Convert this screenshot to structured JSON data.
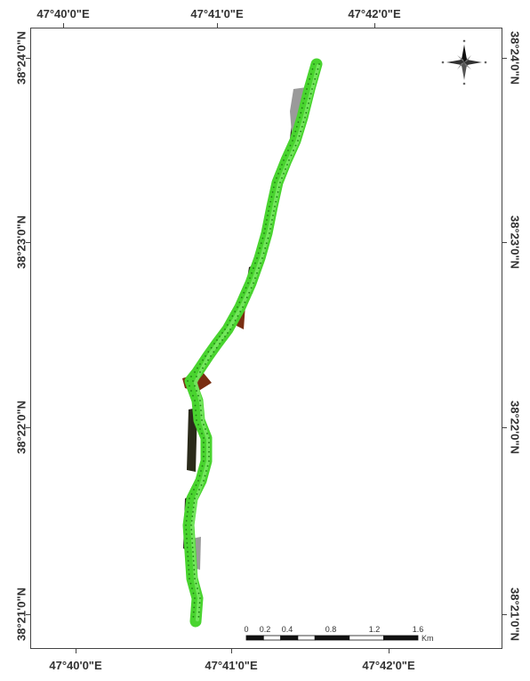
{
  "map": {
    "lon_labels": {
      "l1": "47°40'0\"E",
      "l2": "47°41'0\"E",
      "l3": "47°42'0\"E"
    },
    "lat_labels": {
      "a1": "38°24'0\"N",
      "a2": "38°23'0\"N",
      "a3": "38°22'0\"N",
      "a4": "38°21'0\"N"
    },
    "river_colors": {
      "vegetation": "#49d42f",
      "vegetation_light": "#8ef07a",
      "bank_dark": "#2a2a1a",
      "bank_brown": "#7a2e12",
      "bank_grey": "#9a9a9a",
      "points": "#1f7d14"
    },
    "north_arrow": {
      "icon": "compass-rose-icon"
    },
    "scale_bar": {
      "ticks": [
        "0",
        "0.2",
        "0.4",
        "0.8",
        "1.2",
        "1.6"
      ],
      "unit": "Km"
    }
  }
}
